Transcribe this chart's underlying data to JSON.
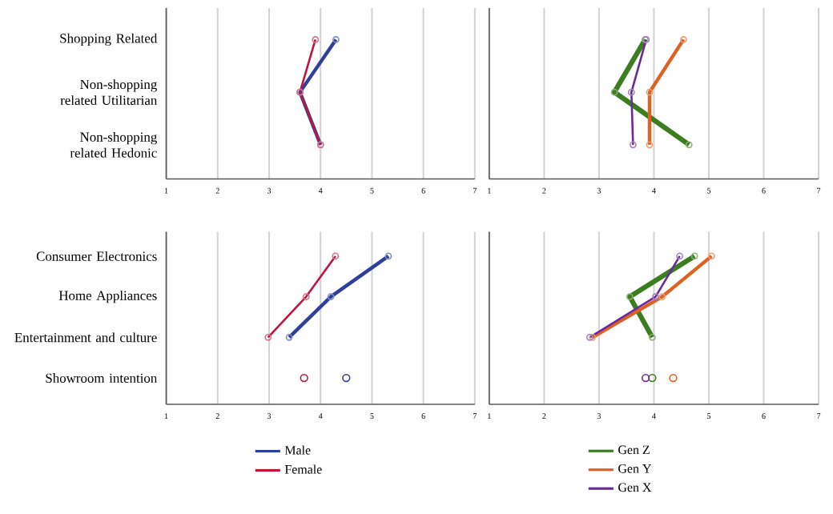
{
  "chart_data": [
    {
      "type": "line",
      "orientation": "horizontal",
      "categories": [
        "Shopping Related",
        "Non-shopping related Utilitarian",
        "Non-shopping related Hedonic"
      ],
      "xlim": [
        1,
        7
      ],
      "xticks": [
        1,
        2,
        3,
        4,
        5,
        6,
        7
      ],
      "grid": "x",
      "marker": "circle",
      "series": [
        {
          "color": "#2e3f9c",
          "values": [
            4.3,
            3.6,
            4.0
          ]
        },
        {
          "color": "#c0143c",
          "values": [
            3.9,
            3.6,
            4.0
          ]
        }
      ]
    },
    {
      "type": "line",
      "orientation": "horizontal",
      "categories": [
        null,
        null,
        null
      ],
      "xlim": [
        1,
        7
      ],
      "xticks": [
        1,
        2,
        3,
        4,
        5,
        6,
        7
      ],
      "grid": "x",
      "marker": "circle",
      "tick_labels": "x",
      "series": [
        {
          "color": "#3b7d1f",
          "values": [
            3.84,
            3.28,
            4.64
          ]
        },
        {
          "color": "#e0601f",
          "values": [
            4.54,
            3.92,
            3.92
          ]
        },
        {
          "color": "#6a2a9e",
          "values": [
            3.86,
            3.59,
            3.62
          ]
        }
      ]
    },
    {
      "type": "line",
      "orientation": "horizontal",
      "categories": [
        "Consumer Electronics",
        "Home Appliances",
        "Entertainment and culture",
        "Showroom intention"
      ],
      "xlim": [
        1,
        7
      ],
      "xticks": [
        1,
        2,
        3,
        4,
        5,
        6,
        7
      ],
      "grid": "x",
      "marker": "circle",
      "legend": "bottom",
      "series": [
        {
          "name": "Male",
          "color": "#2e3f9c",
          "values": [
            5.32,
            4.2,
            3.39,
            null
          ]
        },
        {
          "name": "Female",
          "color": "#c0143c",
          "values": [
            4.29,
            3.72,
            2.98,
            null
          ]
        },
        {
          "type": "scatter",
          "color": "#2e3f9c",
          "values": [
            null,
            null,
            null,
            4.5
          ]
        },
        {
          "type": "scatter",
          "color": "#c0143c",
          "values": [
            null,
            null,
            null,
            3.68
          ]
        }
      ]
    },
    {
      "type": "line",
      "orientation": "horizontal",
      "categories": [
        null,
        null,
        null,
        null
      ],
      "xlim": [
        1,
        7
      ],
      "xticks": [
        1,
        2,
        3,
        4,
        5,
        6,
        7
      ],
      "grid": "x",
      "marker": "circle",
      "tick_labels": "x",
      "legend": "bottom",
      "series": [
        {
          "name": "Gen Z",
          "color": "#3b7d1f",
          "values": [
            4.74,
            3.56,
            3.97,
            null
          ]
        },
        {
          "name": "Gen Y",
          "color": "#e0601f",
          "values": [
            5.05,
            4.15,
            2.88,
            null
          ]
        },
        {
          "name": "Gen X",
          "color": "#6a2a9e",
          "values": [
            4.47,
            4.03,
            2.83,
            null
          ]
        },
        {
          "type": "scatter",
          "color": "#3b7d1f",
          "values": [
            null,
            null,
            null,
            3.97
          ]
        },
        {
          "type": "scatter",
          "color": "#e0601f",
          "values": [
            null,
            null,
            null,
            4.35
          ]
        },
        {
          "type": "scatter",
          "color": "#6a2a9e",
          "values": [
            null,
            null,
            null,
            3.85
          ]
        }
      ]
    }
  ]
}
